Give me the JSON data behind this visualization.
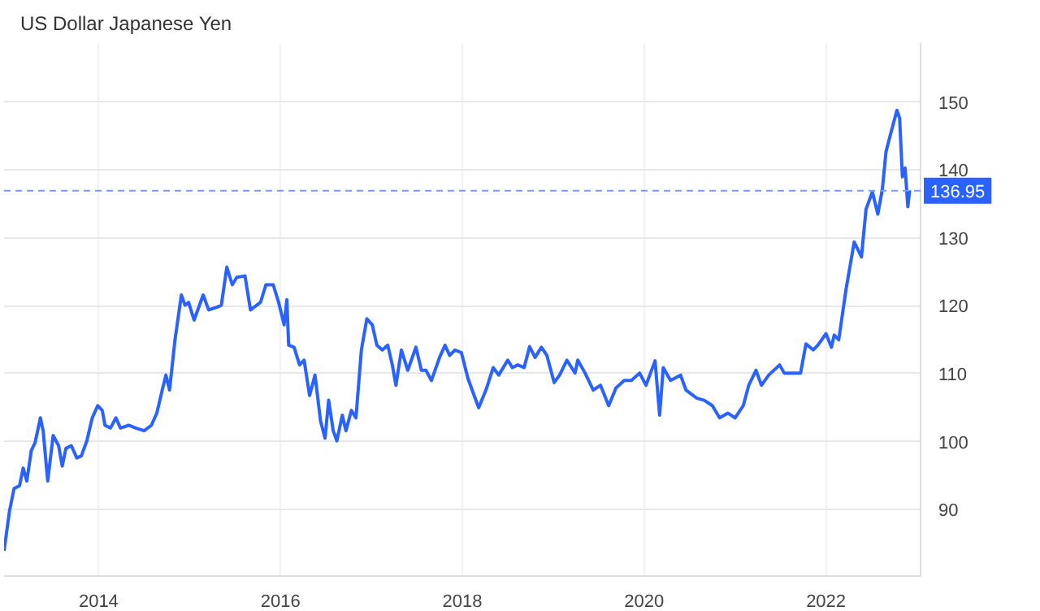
{
  "chart_data": {
    "type": "line",
    "title": "US Dollar Japanese Yen",
    "x": [
      2012.96,
      2013.02,
      2013.07,
      2013.13,
      2013.17,
      2013.21,
      2013.26,
      2013.3,
      2013.36,
      2013.39,
      2013.44,
      2013.5,
      2013.56,
      2013.6,
      2013.64,
      2013.7,
      2013.76,
      2013.81,
      2013.87,
      2013.93,
      2013.99,
      2014.04,
      2014.07,
      2014.13,
      2014.19,
      2014.24,
      2014.33,
      2014.41,
      2014.5,
      2014.58,
      2014.64,
      2014.7,
      2014.74,
      2014.78,
      2014.84,
      2014.91,
      2014.95,
      2014.99,
      2015.05,
      2015.15,
      2015.21,
      2015.3,
      2015.35,
      2015.41,
      2015.47,
      2015.52,
      2015.61,
      2015.67,
      2015.78,
      2015.84,
      2015.92,
      2015.98,
      2016.04,
      2016.07,
      2016.09,
      2016.15,
      2016.21,
      2016.26,
      2016.32,
      2016.38,
      2016.44,
      2016.49,
      2016.53,
      2016.58,
      2016.62,
      2016.68,
      2016.72,
      2016.78,
      2016.83,
      2016.89,
      2016.95,
      2017.01,
      2017.06,
      2017.12,
      2017.18,
      2017.23,
      2017.27,
      2017.33,
      2017.4,
      2017.49,
      2017.55,
      2017.6,
      2017.66,
      2017.75,
      2017.81,
      2017.86,
      2017.92,
      2017.99,
      2018.06,
      2018.13,
      2018.18,
      2018.26,
      2018.34,
      2018.4,
      2018.5,
      2018.55,
      2018.61,
      2018.68,
      2018.74,
      2018.8,
      2018.87,
      2018.93,
      2019.01,
      2019.07,
      2019.15,
      2019.24,
      2019.27,
      2019.35,
      2019.44,
      2019.52,
      2019.61,
      2019.69,
      2019.78,
      2019.86,
      2019.95,
      2020.02,
      2020.12,
      2020.17,
      2020.21,
      2020.29,
      2020.4,
      2020.46,
      2020.58,
      2020.66,
      2020.75,
      2020.83,
      2020.92,
      2021.0,
      2021.09,
      2021.15,
      2021.23,
      2021.29,
      2021.37,
      2021.49,
      2021.54,
      2021.72,
      2021.78,
      2021.86,
      2021.91,
      2022.0,
      2022.06,
      2022.09,
      2022.14,
      2022.22,
      2022.31,
      2022.39,
      2022.44,
      2022.51,
      2022.57,
      2022.62,
      2022.66,
      2022.71,
      2022.78,
      2022.81,
      2022.84,
      2022.87,
      2022.9,
      2022.92
    ],
    "series": [
      {
        "color": "#2962ff",
        "values": [
          83.9,
          89.8,
          93.1,
          93.5,
          96.1,
          94.2,
          98.7,
          99.8,
          103.5,
          101.6,
          94.2,
          100.9,
          99.4,
          96.4,
          99.0,
          99.4,
          97.6,
          97.9,
          100.1,
          103.5,
          105.3,
          104.6,
          102.4,
          102.0,
          103.5,
          102.0,
          102.4,
          102.0,
          101.6,
          102.4,
          104.2,
          107.6,
          109.8,
          107.6,
          115.0,
          121.6,
          120.1,
          120.5,
          117.9,
          121.6,
          119.4,
          119.8,
          120.1,
          125.7,
          123.1,
          124.2,
          124.4,
          119.4,
          120.5,
          123.1,
          123.1,
          120.5,
          117.2,
          120.9,
          114.2,
          113.9,
          111.3,
          112.0,
          106.8,
          109.8,
          103.1,
          100.5,
          106.1,
          101.6,
          100.1,
          103.9,
          101.6,
          104.6,
          103.5,
          113.5,
          118.1,
          117.2,
          114.2,
          113.5,
          114.2,
          111.3,
          108.3,
          113.5,
          110.5,
          113.9,
          110.5,
          110.5,
          109.0,
          112.4,
          114.2,
          112.7,
          113.5,
          113.1,
          109.4,
          106.8,
          105.0,
          107.6,
          110.9,
          109.8,
          112.0,
          110.9,
          111.3,
          110.9,
          114.0,
          112.4,
          113.9,
          112.7,
          108.7,
          109.8,
          112.0,
          110.1,
          112.0,
          110.1,
          107.6,
          108.3,
          105.3,
          107.9,
          109.0,
          109.0,
          110.1,
          108.3,
          111.9,
          103.9,
          110.9,
          109.0,
          109.8,
          107.6,
          106.4,
          106.1,
          105.3,
          103.5,
          104.2,
          103.5,
          105.3,
          108.3,
          110.5,
          108.3,
          109.8,
          111.3,
          110.1,
          110.1,
          114.4,
          113.5,
          114.2,
          115.9,
          113.9,
          115.7,
          115.0,
          122.4,
          129.4,
          127.2,
          134.2,
          136.8,
          133.5,
          137.2,
          142.7,
          145.3,
          148.8,
          147.6,
          139.0,
          140.3,
          134.6,
          137.0
        ]
      }
    ],
    "xlim": [
      2012.96,
      2023.04
    ],
    "xticks": [
      2014,
      2016,
      2018,
      2020,
      2022
    ],
    "ylim": [
      80.2,
      158.7
    ],
    "yticks": [
      90,
      100,
      110,
      120,
      130,
      140,
      150
    ],
    "ref_lines": [
      {
        "axis": "y",
        "value": 136.95,
        "label": "136.95",
        "color": "#7a9cf5",
        "line_style": "dashed"
      }
    ],
    "grid": true,
    "marker": "none",
    "line_style": "solid"
  }
}
